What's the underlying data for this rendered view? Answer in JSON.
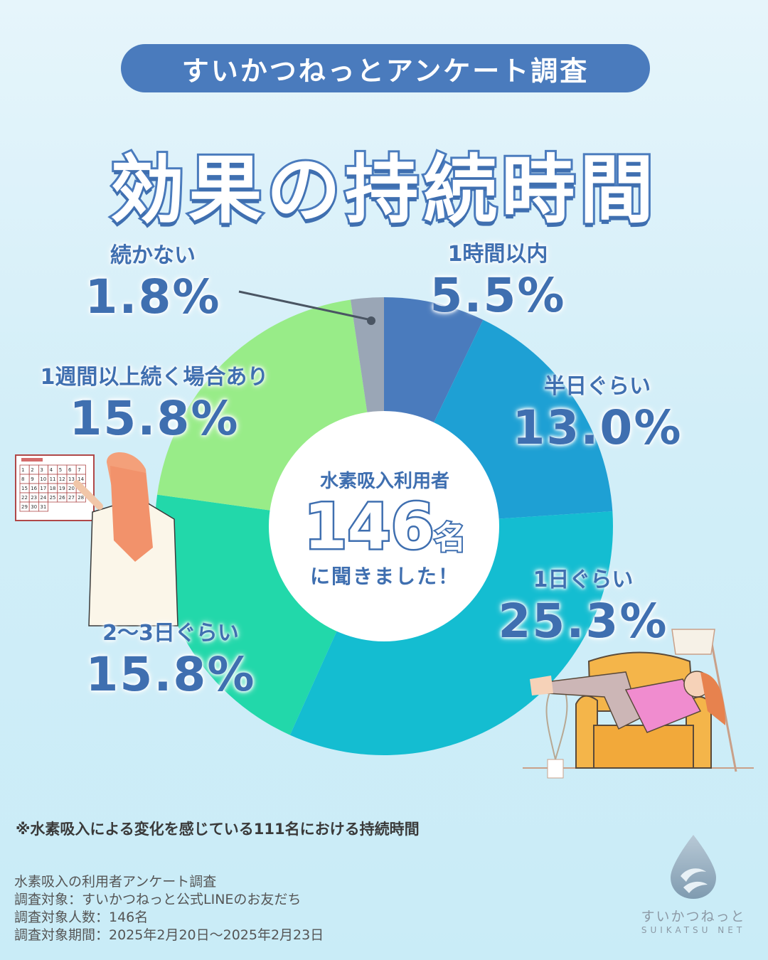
{
  "header": {
    "pill_text": "すいかつねっとアンケート調査",
    "title": "効果の持続時間"
  },
  "center": {
    "line1": "水素吸入利用者",
    "count": "146",
    "unit": "名",
    "line2": "に聞きました！"
  },
  "chart_data": {
    "type": "pie",
    "categories": [
      "1時間以内",
      "半日ぐらい",
      "1日ぐらい",
      "2〜3日ぐらい",
      "1週間以上続く場合あり",
      "続かない"
    ],
    "values": [
      5.5,
      13.0,
      25.3,
      15.8,
      15.8,
      1.8
    ],
    "labels": [
      "5.5%",
      "13.0%",
      "25.3%",
      "15.8%",
      "15.8%",
      "1.8%"
    ],
    "colors": [
      "#4a7bbd",
      "#1ea0d4",
      "#14bdd1",
      "#22d8aa",
      "#98ec88",
      "#9aa6b6"
    ]
  },
  "footnote": "※水素吸入による変化を感じている111名における持続時間",
  "survey": {
    "line1": "水素吸入の利用者アンケート調査",
    "line2": "調査対象：すいかつねっと公式LINEのお友だち",
    "line3": "調査対象人数：146名",
    "line4": "調査対象期間：2025年2月20日〜2025年2月23日"
  },
  "logo": {
    "brand": "すいかつねっと",
    "brand_en": "SUIKATSU NET"
  },
  "icons": {
    "calendar": "calendar-illustration-icon",
    "woman_pointing": "woman-pointing-icon",
    "woman_relaxing": "woman-relaxing-chair-icon",
    "logo_drop": "water-drop-logo-icon"
  },
  "calendar_days": [
    "1",
    "2",
    "3",
    "4",
    "5",
    "6",
    "7",
    "8",
    "9",
    "10",
    "11",
    "12",
    "13",
    "14",
    "15",
    "16",
    "17",
    "18",
    "19",
    "20",
    "21",
    "22",
    "23",
    "24",
    "25",
    "26",
    "27",
    "28",
    "29",
    "30",
    "31"
  ]
}
